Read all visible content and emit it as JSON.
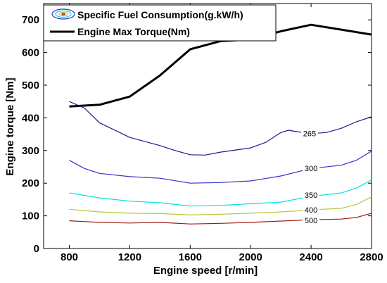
{
  "chart_data": {
    "type": "line",
    "title": "",
    "xlabel": "Engine speed [r/min]",
    "ylabel": "Engine torque [Nm]",
    "xlim": [
      630,
      2800
    ],
    "ylim": [
      0,
      750
    ],
    "xticks": [
      800,
      1200,
      1600,
      2000,
      2400,
      2800
    ],
    "yticks": [
      0,
      100,
      200,
      300,
      400,
      500,
      600,
      700
    ],
    "grid": false,
    "legend_position": "top-left",
    "legend": [
      {
        "label": "Specific Fuel Consumption(g.kW/h)",
        "marker": "contour"
      },
      {
        "label": "Engine Max Torque(Nm)",
        "marker": "line"
      }
    ],
    "series": [
      {
        "name": "Engine Max Torque(Nm)",
        "color": "#000000",
        "x": [
          800,
          1000,
          1200,
          1400,
          1600,
          1800,
          2000,
          2200,
          2400,
          2600,
          2800
        ],
        "y": [
          435,
          440,
          465,
          530,
          610,
          635,
          640,
          665,
          685,
          670,
          655
        ]
      },
      {
        "contour_level": "265",
        "color": "#1a1a8a",
        "x": [
          800,
          900,
          1000,
          1200,
          1400,
          1500,
          1600,
          1700,
          1800,
          2000,
          2100,
          2200,
          2250,
          2300,
          2400,
          2500,
          2600,
          2700,
          2800
        ],
        "y": [
          450,
          430,
          385,
          340,
          315,
          300,
          287,
          286,
          295,
          308,
          325,
          355,
          362,
          358,
          352,
          355,
          368,
          388,
          403
        ]
      },
      {
        "contour_level": "300",
        "color": "#3333cc",
        "x": [
          800,
          900,
          1000,
          1200,
          1400,
          1600,
          1800,
          2000,
          2200,
          2400,
          2600,
          2700,
          2800
        ],
        "y": [
          270,
          245,
          230,
          220,
          215,
          200,
          202,
          207,
          222,
          245,
          255,
          270,
          298
        ]
      },
      {
        "contour_level": "350",
        "color": "#00e0e0",
        "x": [
          800,
          1000,
          1200,
          1400,
          1600,
          1800,
          2000,
          2200,
          2400,
          2600,
          2700,
          2800
        ],
        "y": [
          170,
          155,
          145,
          140,
          130,
          132,
          137,
          142,
          160,
          170,
          185,
          210
        ]
      },
      {
        "contour_level": "400",
        "color": "#b8c43c",
        "x": [
          800,
          1000,
          1200,
          1400,
          1600,
          1800,
          2000,
          2200,
          2400,
          2600,
          2700,
          2800
        ],
        "y": [
          120,
          112,
          108,
          107,
          103,
          105,
          108,
          112,
          118,
          123,
          135,
          158
        ]
      },
      {
        "contour_level": "500",
        "color": "#a01818",
        "x": [
          800,
          1000,
          1200,
          1400,
          1600,
          1800,
          2000,
          2200,
          2400,
          2600,
          2700,
          2800
        ],
        "y": [
          85,
          80,
          78,
          80,
          75,
          77,
          80,
          84,
          88,
          90,
          95,
          108
        ]
      }
    ],
    "contour_labels": [
      {
        "text": "265",
        "x": 2390,
        "y": 352
      },
      {
        "text": "300",
        "x": 2400,
        "y": 246
      },
      {
        "text": "350",
        "x": 2400,
        "y": 164
      },
      {
        "text": "400",
        "x": 2400,
        "y": 118
      },
      {
        "text": "500",
        "x": 2400,
        "y": 86
      }
    ]
  }
}
